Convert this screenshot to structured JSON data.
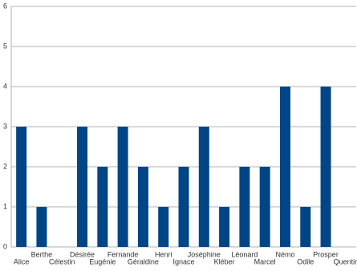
{
  "chart_data": {
    "type": "bar",
    "categories": [
      "Alice",
      "Berthe",
      "Célestin",
      "Désirée",
      "Eugénie",
      "Fernande",
      "Géraldine",
      "Henri",
      "Ignace",
      "Joséphine",
      "Kléber",
      "Léonard",
      "Marcel",
      "Némo",
      "Odile",
      "Prosper",
      "Quentin"
    ],
    "values": [
      3,
      1,
      0,
      3,
      2,
      3,
      2,
      1,
      2,
      3,
      1,
      2,
      2,
      4,
      1,
      4,
      0
    ],
    "color": "#004586",
    "ylim": [
      0,
      6
    ],
    "yticks": [
      0,
      1,
      2,
      3,
      4,
      5,
      6
    ],
    "grid": true
  }
}
